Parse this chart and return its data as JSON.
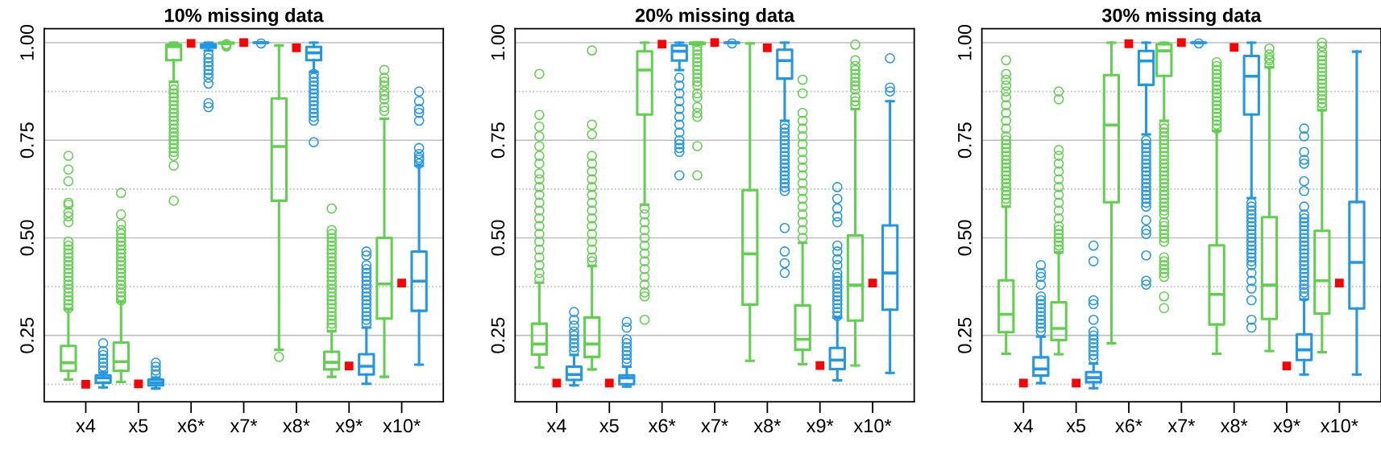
{
  "chart_data": [
    {
      "type": "box",
      "title": "10% missing data",
      "categories": [
        "x4",
        "x5",
        "x6*",
        "x7*",
        "x8*",
        "x9*",
        "x10*"
      ],
      "ylim": [
        0.08,
        1.036
      ],
      "yticks": [
        {
          "value": 0.25,
          "label": "0.25"
        },
        {
          "value": 0.5,
          "label": "0.50"
        },
        {
          "value": 0.75,
          "label": "0.75"
        },
        {
          "value": 1.0,
          "label": "1.00"
        }
      ],
      "grid": "y",
      "ref_lines": [
        {
          "axis": "y",
          "value": 0.125,
          "line_style": "dotted",
          "color": "#bebebe"
        },
        {
          "axis": "y",
          "value": 0.375,
          "line_style": "dotted",
          "color": "#bebebe"
        },
        {
          "axis": "y",
          "value": 0.625,
          "line_style": "dotted",
          "color": "#bebebe"
        },
        {
          "axis": "y",
          "value": 0.875,
          "line_style": "dotted",
          "color": "#bebebe"
        }
      ],
      "series": [
        {
          "type": "box",
          "color": "#61d04f",
          "boxes": [
            {
              "low": 0.137,
              "q1": 0.159,
              "median": 0.18,
              "q3": 0.223,
              "high": 0.317,
              "outliers": [
                0.32,
                0.33,
                0.34,
                0.35,
                0.36,
                0.37,
                0.38,
                0.39,
                0.4,
                0.41,
                0.42,
                0.43,
                0.44,
                0.45,
                0.46,
                0.47,
                0.48,
                0.49,
                0.54,
                0.555,
                0.565,
                0.585,
                0.59,
                0.645,
                0.675,
                0.71
              ]
            },
            {
              "low": 0.131,
              "q1": 0.159,
              "median": 0.183,
              "q3": 0.232,
              "high": 0.336,
              "outliers": [
                0.34,
                0.35,
                0.36,
                0.37,
                0.38,
                0.39,
                0.4,
                0.41,
                0.42,
                0.43,
                0.44,
                0.45,
                0.46,
                0.47,
                0.48,
                0.49,
                0.5,
                0.51,
                0.52,
                0.535,
                0.56,
                0.615
              ]
            },
            {
              "low": 0.9,
              "q1": 0.955,
              "median": 0.99,
              "q3": 0.995,
              "high": 1.0,
              "outliers": [
                0.595,
                0.685,
                0.71,
                0.72,
                0.73,
                0.74,
                0.75,
                0.76,
                0.77,
                0.78,
                0.79,
                0.8,
                0.81,
                0.82,
                0.83,
                0.84,
                0.85,
                0.86,
                0.87,
                0.88,
                0.89
              ]
            },
            {
              "low": 0.997,
              "q1": 0.998,
              "median": 0.999,
              "q3": 1.0,
              "high": 1.0,
              "outliers": [
                0.99,
                0.993,
                0.996
              ]
            },
            {
              "low": 0.213,
              "q1": 0.595,
              "median": 0.734,
              "q3": 0.857,
              "high": 0.993,
              "outliers": [
                0.195
              ]
            },
            {
              "low": 0.144,
              "q1": 0.163,
              "median": 0.181,
              "q3": 0.208,
              "high": 0.261,
              "outliers": [
                0.27,
                0.28,
                0.29,
                0.3,
                0.31,
                0.32,
                0.33,
                0.34,
                0.35,
                0.36,
                0.37,
                0.38,
                0.39,
                0.4,
                0.41,
                0.42,
                0.43,
                0.44,
                0.45,
                0.46,
                0.47,
                0.48,
                0.49,
                0.5,
                0.51,
                0.52,
                0.575
              ]
            },
            {
              "low": 0.144,
              "q1": 0.293,
              "median": 0.382,
              "q3": 0.5,
              "high": 0.805,
              "outliers": [
                0.825,
                0.835,
                0.855,
                0.865,
                0.875,
                0.89,
                0.9,
                0.91,
                0.93
              ]
            }
          ]
        },
        {
          "type": "box",
          "color": "#2297e6",
          "boxes": [
            {
              "low": 0.117,
              "q1": 0.129,
              "median": 0.141,
              "q3": 0.148,
              "high": 0.155,
              "outliers": [
                0.16,
                0.17,
                0.18,
                0.19,
                0.2,
                0.21,
                0.23
              ]
            },
            {
              "low": 0.114,
              "q1": 0.122,
              "median": 0.129,
              "q3": 0.137,
              "high": 0.142,
              "outliers": [
                0.15,
                0.16,
                0.17,
                0.18
              ]
            },
            {
              "low": 0.98,
              "q1": 0.987,
              "median": 0.993,
              "q3": 0.996,
              "high": 1.0,
              "outliers": [
                0.835,
                0.845,
                0.895,
                0.91,
                0.92,
                0.93,
                0.94,
                0.95,
                0.96,
                0.97
              ]
            },
            {
              "low": 0.999,
              "q1": 1.0,
              "median": 1.0,
              "q3": 1.0,
              "high": 1.0,
              "outliers": [
                0.998
              ]
            },
            {
              "low": 0.925,
              "q1": 0.955,
              "median": 0.974,
              "q3": 0.989,
              "high": 1.0,
              "outliers": [
                0.745,
                0.8,
                0.81,
                0.82,
                0.83,
                0.84,
                0.85,
                0.86,
                0.87,
                0.88,
                0.89,
                0.9,
                0.91,
                0.92
              ]
            },
            {
              "low": 0.126,
              "q1": 0.15,
              "median": 0.171,
              "q3": 0.202,
              "high": 0.27,
              "outliers": [
                0.28,
                0.29,
                0.3,
                0.31,
                0.32,
                0.33,
                0.34,
                0.35,
                0.36,
                0.37,
                0.38,
                0.39,
                0.4,
                0.41,
                0.42,
                0.43,
                0.455,
                0.465
              ]
            },
            {
              "low": 0.175,
              "q1": 0.313,
              "median": 0.389,
              "q3": 0.465,
              "high": 0.685,
              "outliers": [
                0.69,
                0.7,
                0.705,
                0.715,
                0.73,
                0.8,
                0.82,
                0.83,
                0.85,
                0.875
              ]
            }
          ]
        },
        {
          "type": "scatter",
          "marker": "square",
          "color": "#ff0000",
          "x": [
            "x4",
            "x5",
            "x6*",
            "x7*",
            "x8*",
            "x9*",
            "x10*"
          ],
          "values": [
            0.125,
            0.126,
            0.998,
            1.0,
            0.987,
            0.172,
            0.384
          ]
        }
      ]
    },
    {
      "type": "box",
      "title": "20% missing data",
      "categories": [
        "x4",
        "x5",
        "x6*",
        "x7*",
        "x8*",
        "x9*",
        "x10*"
      ],
      "ylim": [
        0.08,
        1.036
      ],
      "yticks": [
        {
          "value": 0.25,
          "label": "0.25"
        },
        {
          "value": 0.5,
          "label": "0.50"
        },
        {
          "value": 0.75,
          "label": "0.75"
        },
        {
          "value": 1.0,
          "label": "1.00"
        }
      ],
      "grid": "y",
      "ref_lines": [
        {
          "axis": "y",
          "value": 0.125,
          "line_style": "dotted",
          "color": "#bebebe"
        },
        {
          "axis": "y",
          "value": 0.375,
          "line_style": "dotted",
          "color": "#bebebe"
        },
        {
          "axis": "y",
          "value": 0.625,
          "line_style": "dotted",
          "color": "#bebebe"
        },
        {
          "axis": "y",
          "value": 0.875,
          "line_style": "dotted",
          "color": "#bebebe"
        }
      ],
      "series": [
        {
          "type": "box",
          "color": "#61d04f",
          "boxes": [
            {
              "low": 0.168,
              "q1": 0.201,
              "median": 0.228,
              "q3": 0.28,
              "high": 0.385,
              "outliers": [
                0.395,
                0.41,
                0.43,
                0.45,
                0.47,
                0.49,
                0.51,
                0.53,
                0.55,
                0.57,
                0.59,
                0.61,
                0.63,
                0.65,
                0.665,
                0.69,
                0.71,
                0.735,
                0.76,
                0.785,
                0.815,
                0.92
              ]
            },
            {
              "low": 0.163,
              "q1": 0.195,
              "median": 0.228,
              "q3": 0.296,
              "high": 0.428,
              "outliers": [
                0.44,
                0.45,
                0.47,
                0.49,
                0.51,
                0.53,
                0.55,
                0.57,
                0.59,
                0.61,
                0.63,
                0.65,
                0.67,
                0.69,
                0.71,
                0.765,
                0.79,
                0.98
              ]
            },
            {
              "low": 0.585,
              "q1": 0.816,
              "median": 0.93,
              "q3": 0.978,
              "high": 1.0,
              "outliers": [
                0.29,
                0.35,
                0.36,
                0.38,
                0.4,
                0.42,
                0.44,
                0.46,
                0.48,
                0.5,
                0.52,
                0.54,
                0.56,
                0.575
              ]
            },
            {
              "low": 0.995,
              "q1": 0.997,
              "median": 0.999,
              "q3": 1.0,
              "high": 1.0,
              "outliers": [
                0.66,
                0.735,
                0.81,
                0.82,
                0.835,
                0.86,
                0.87,
                0.89,
                0.9,
                0.91,
                0.92,
                0.93,
                0.94,
                0.95,
                0.96,
                0.97,
                0.98,
                0.99
              ]
            },
            {
              "low": 0.185,
              "q1": 0.329,
              "median": 0.459,
              "q3": 0.622,
              "high": 0.998
            },
            {
              "low": 0.176,
              "q1": 0.213,
              "median": 0.24,
              "q3": 0.327,
              "high": 0.487,
              "outliers": [
                0.5,
                0.52,
                0.54,
                0.56,
                0.58,
                0.6,
                0.62,
                0.64,
                0.66,
                0.68,
                0.7,
                0.72,
                0.74,
                0.76,
                0.78,
                0.8,
                0.82,
                0.87,
                0.905
              ]
            },
            {
              "low": 0.173,
              "q1": 0.288,
              "median": 0.379,
              "q3": 0.506,
              "high": 0.83,
              "outliers": [
                0.84,
                0.85,
                0.86,
                0.88,
                0.89,
                0.9,
                0.91,
                0.92,
                0.93,
                0.94,
                0.955,
                0.995
              ]
            }
          ]
        },
        {
          "type": "box",
          "color": "#2297e6",
          "boxes": [
            {
              "low": 0.122,
              "q1": 0.136,
              "median": 0.15,
              "q3": 0.17,
              "high": 0.2,
              "outliers": [
                0.21,
                0.22,
                0.23,
                0.24,
                0.25,
                0.26,
                0.275,
                0.29,
                0.31
              ]
            },
            {
              "low": 0.119,
              "q1": 0.125,
              "median": 0.141,
              "q3": 0.148,
              "high": 0.17,
              "outliers": [
                0.18,
                0.19,
                0.2,
                0.21,
                0.22,
                0.23,
                0.24,
                0.27,
                0.285
              ]
            },
            {
              "low": 0.93,
              "q1": 0.954,
              "median": 0.978,
              "q3": 0.993,
              "high": 1.0,
              "outliers": [
                0.66,
                0.72,
                0.73,
                0.74,
                0.75,
                0.77,
                0.79,
                0.81,
                0.83,
                0.85,
                0.87,
                0.89,
                0.91
              ]
            },
            {
              "low": 0.999,
              "q1": 1.0,
              "median": 1.0,
              "q3": 1.0,
              "high": 1.0,
              "outliers": [
                0.998
              ]
            },
            {
              "low": 0.8,
              "q1": 0.908,
              "median": 0.954,
              "q3": 0.982,
              "high": 1.0,
              "outliers": [
                0.41,
                0.435,
                0.465,
                0.525,
                0.62,
                0.63,
                0.64,
                0.65,
                0.66,
                0.67,
                0.68,
                0.69,
                0.7,
                0.71,
                0.72,
                0.73,
                0.74,
                0.75,
                0.76,
                0.77,
                0.78,
                0.79
              ]
            },
            {
              "low": 0.135,
              "q1": 0.164,
              "median": 0.187,
              "q3": 0.218,
              "high": 0.296,
              "outliers": [
                0.3,
                0.31,
                0.32,
                0.33,
                0.34,
                0.35,
                0.36,
                0.37,
                0.38,
                0.39,
                0.4,
                0.41,
                0.43,
                0.445,
                0.465,
                0.48,
                0.54,
                0.555,
                0.575,
                0.6,
                0.63
              ]
            },
            {
              "low": 0.154,
              "q1": 0.316,
              "median": 0.41,
              "q3": 0.532,
              "high": 0.85,
              "outliers": [
                0.875,
                0.885,
                0.96
              ]
            }
          ]
        },
        {
          "type": "scatter",
          "marker": "square",
          "color": "#ff0000",
          "x": [
            "x4",
            "x5",
            "x6*",
            "x7*",
            "x8*",
            "x9*",
            "x10*"
          ],
          "values": [
            0.128,
            0.128,
            0.996,
            1.0,
            0.987,
            0.173,
            0.384
          ]
        }
      ]
    },
    {
      "type": "box",
      "title": "30% missing data",
      "categories": [
        "x4",
        "x5",
        "x6*",
        "x7*",
        "x8*",
        "x9*",
        "x10*"
      ],
      "ylim": [
        0.08,
        1.036
      ],
      "yticks": [
        {
          "value": 0.25,
          "label": "0.25"
        },
        {
          "value": 0.5,
          "label": "0.50"
        },
        {
          "value": 0.75,
          "label": "0.75"
        },
        {
          "value": 1.0,
          "label": "1.00"
        }
      ],
      "grid": "y",
      "ref_lines": [
        {
          "axis": "y",
          "value": 0.125,
          "line_style": "dotted",
          "color": "#bebebe"
        },
        {
          "axis": "y",
          "value": 0.375,
          "line_style": "dotted",
          "color": "#bebebe"
        },
        {
          "axis": "y",
          "value": 0.625,
          "line_style": "dotted",
          "color": "#bebebe"
        },
        {
          "axis": "y",
          "value": 0.875,
          "line_style": "dotted",
          "color": "#bebebe"
        }
      ],
      "series": [
        {
          "type": "box",
          "color": "#61d04f",
          "boxes": [
            {
              "low": 0.203,
              "q1": 0.258,
              "median": 0.304,
              "q3": 0.391,
              "high": 0.58,
              "outliers": [
                0.59,
                0.6,
                0.61,
                0.62,
                0.63,
                0.64,
                0.65,
                0.66,
                0.67,
                0.68,
                0.69,
                0.7,
                0.71,
                0.72,
                0.73,
                0.74,
                0.75,
                0.76,
                0.78,
                0.8,
                0.82,
                0.84,
                0.86,
                0.875,
                0.89,
                0.905,
                0.92,
                0.955
              ]
            },
            {
              "low": 0.202,
              "q1": 0.238,
              "median": 0.268,
              "q3": 0.335,
              "high": 0.463,
              "outliers": [
                0.47,
                0.48,
                0.49,
                0.5,
                0.51,
                0.52,
                0.53,
                0.55,
                0.57,
                0.59,
                0.61,
                0.63,
                0.65,
                0.67,
                0.69,
                0.71,
                0.725,
                0.855,
                0.875
              ]
            },
            {
              "low": 0.23,
              "q1": 0.591,
              "median": 0.789,
              "q3": 0.917,
              "high": 1.0
            },
            {
              "low": 0.8,
              "q1": 0.915,
              "median": 0.979,
              "q3": 0.996,
              "high": 1.0,
              "outliers": [
                0.32,
                0.35,
                0.4,
                0.41,
                0.42,
                0.43,
                0.44,
                0.45,
                0.49,
                0.5,
                0.51,
                0.52,
                0.53,
                0.54,
                0.56,
                0.57,
                0.58,
                0.59,
                0.6,
                0.61,
                0.62,
                0.63,
                0.64,
                0.65,
                0.66,
                0.67,
                0.68,
                0.69,
                0.7,
                0.71,
                0.72,
                0.73,
                0.74,
                0.75,
                0.76,
                0.77,
                0.78,
                0.79
              ]
            },
            {
              "low": 0.203,
              "q1": 0.278,
              "median": 0.355,
              "q3": 0.481,
              "high": 0.774,
              "outliers": [
                0.78,
                0.79,
                0.8,
                0.81,
                0.82,
                0.83,
                0.84,
                0.85,
                0.86,
                0.87,
                0.88,
                0.89,
                0.9,
                0.91,
                0.92,
                0.93,
                0.94,
                0.95
              ]
            },
            {
              "low": 0.21,
              "q1": 0.292,
              "median": 0.379,
              "q3": 0.553,
              "high": 0.937,
              "outliers": [
                0.945,
                0.955,
                0.96,
                0.97,
                0.985
              ]
            },
            {
              "low": 0.207,
              "q1": 0.306,
              "median": 0.39,
              "q3": 0.518,
              "high": 0.827,
              "outliers": [
                0.835,
                0.845,
                0.855,
                0.865,
                0.875,
                0.885,
                0.895,
                0.905,
                0.915,
                0.925,
                0.935,
                0.945,
                0.955,
                0.965,
                0.975,
                0.99,
                1.0
              ]
            }
          ]
        },
        {
          "type": "box",
          "color": "#2297e6",
          "boxes": [
            {
              "low": 0.128,
              "q1": 0.147,
              "median": 0.164,
              "q3": 0.194,
              "high": 0.247,
              "outliers": [
                0.26,
                0.27,
                0.28,
                0.29,
                0.3,
                0.31,
                0.32,
                0.33,
                0.34,
                0.35,
                0.38,
                0.4,
                0.41,
                0.43
              ]
            },
            {
              "low": 0.115,
              "q1": 0.13,
              "median": 0.142,
              "q3": 0.156,
              "high": 0.178,
              "outliers": [
                0.19,
                0.2,
                0.21,
                0.22,
                0.23,
                0.24,
                0.25,
                0.26,
                0.29,
                0.33,
                0.34,
                0.44,
                0.48
              ]
            },
            {
              "low": 0.765,
              "q1": 0.892,
              "median": 0.953,
              "q3": 0.979,
              "high": 1.0,
              "outliers": [
                0.38,
                0.39,
                0.455,
                0.51,
                0.52,
                0.545,
                0.58,
                0.59,
                0.6,
                0.61,
                0.62,
                0.63,
                0.64,
                0.65,
                0.66,
                0.67,
                0.68,
                0.69,
                0.7,
                0.71,
                0.72,
                0.73,
                0.74,
                0.75
              ]
            },
            {
              "low": 0.999,
              "q1": 1.0,
              "median": 1.0,
              "q3": 1.0,
              "high": 1.0,
              "outliers": [
                0.998
              ]
            },
            {
              "low": 0.602,
              "q1": 0.816,
              "median": 0.914,
              "q3": 0.966,
              "high": 1.0,
              "outliers": [
                0.27,
                0.29,
                0.34,
                0.37,
                0.39,
                0.41,
                0.43,
                0.44,
                0.45,
                0.46,
                0.47,
                0.48,
                0.49,
                0.5,
                0.51,
                0.52,
                0.53,
                0.54,
                0.55,
                0.56,
                0.57,
                0.58,
                0.59
              ]
            },
            {
              "low": 0.15,
              "q1": 0.187,
              "median": 0.213,
              "q3": 0.253,
              "high": 0.342,
              "outliers": [
                0.35,
                0.36,
                0.37,
                0.38,
                0.39,
                0.4,
                0.41,
                0.42,
                0.43,
                0.44,
                0.45,
                0.46,
                0.47,
                0.48,
                0.49,
                0.5,
                0.51,
                0.52,
                0.53,
                0.54,
                0.55,
                0.56,
                0.58,
                0.62,
                0.645,
                0.69,
                0.7,
                0.72,
                0.76,
                0.78
              ]
            },
            {
              "low": 0.15,
              "q1": 0.319,
              "median": 0.437,
              "q3": 0.592,
              "high": 0.977
            }
          ]
        },
        {
          "type": "scatter",
          "marker": "square",
          "color": "#ff0000",
          "x": [
            "x4",
            "x5",
            "x6*",
            "x7*",
            "x8*",
            "x9*",
            "x10*"
          ],
          "values": [
            0.128,
            0.128,
            0.997,
            1.0,
            0.988,
            0.172,
            0.384
          ]
        }
      ]
    }
  ]
}
